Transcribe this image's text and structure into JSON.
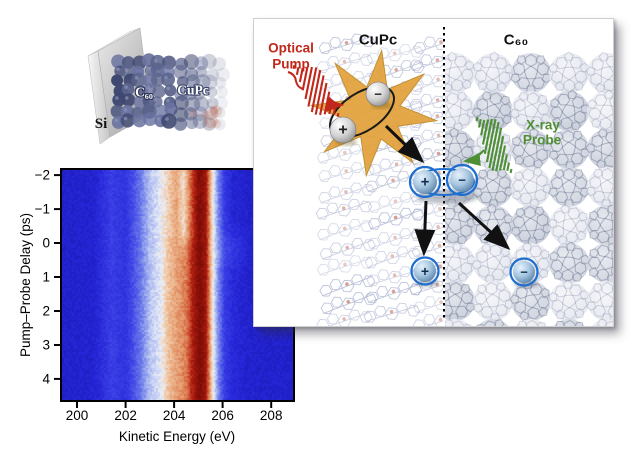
{
  "chart_data": {
    "type": "heatmap",
    "title": "",
    "xlabel": "Kinetic Energy (eV)",
    "ylabel": "Pump–Probe Delay (ps)",
    "x_range_eV": [
      199.38,
      208.9
    ],
    "y_range_ps": [
      -2.15,
      4.62
    ],
    "y_increases_downward": true,
    "x_ticks": [
      200,
      202,
      204,
      206,
      208
    ],
    "x_tick_labels": [
      "200",
      "202",
      "204",
      "206",
      "208"
    ],
    "y_ticks": [
      -2,
      -1,
      0,
      1,
      2,
      3,
      4
    ],
    "y_tick_labels": [
      "−2",
      "−1",
      "0",
      "1",
      "2",
      "3",
      "4"
    ],
    "grid": false,
    "legend": false,
    "colormap_stops": [
      [
        0.0,
        "#1a1ab4"
      ],
      [
        0.1,
        "#2626d8"
      ],
      [
        0.22,
        "#3c42e6"
      ],
      [
        0.34,
        "#6b79ea"
      ],
      [
        0.46,
        "#b7c4f2"
      ],
      [
        0.54,
        "#eceff7"
      ],
      [
        0.62,
        "#f0c6a2"
      ],
      [
        0.7,
        "#e59a6e"
      ],
      [
        0.78,
        "#d4603c"
      ],
      [
        0.88,
        "#b01e10"
      ],
      [
        1.0,
        "#7d0c07"
      ]
    ],
    "description": "Time-resolved photoemission map: vertical emission bands vs kinetic energy; the salmon band near 204–204.6 eV broadens/merges toward the strong 205 eV band after zero pump–probe delay, with a faint transient near 206.4 eV at t≈0.",
    "intensity_profile_before_t0": [
      [
        199.38,
        0.065
      ],
      [
        200.7,
        0.08
      ],
      [
        201.4,
        0.2
      ],
      [
        202.0,
        0.16
      ],
      [
        202.6,
        0.33
      ],
      [
        203.0,
        0.46
      ],
      [
        203.4,
        0.52
      ],
      [
        203.8,
        0.62
      ],
      [
        204.1,
        0.68
      ],
      [
        204.4,
        0.58
      ],
      [
        204.65,
        0.75
      ],
      [
        205.0,
        1.0
      ],
      [
        205.3,
        0.93
      ],
      [
        205.55,
        0.6
      ],
      [
        205.8,
        0.38
      ],
      [
        206.1,
        0.17
      ],
      [
        206.45,
        0.09
      ],
      [
        207.0,
        0.07
      ],
      [
        208.9,
        0.06
      ]
    ],
    "intensity_profile_after_t0": [
      [
        199.38,
        0.065
      ],
      [
        200.7,
        0.08
      ],
      [
        201.4,
        0.2
      ],
      [
        202.0,
        0.16
      ],
      [
        202.6,
        0.33
      ],
      [
        203.0,
        0.46
      ],
      [
        203.4,
        0.52
      ],
      [
        203.8,
        0.64
      ],
      [
        204.2,
        0.7
      ],
      [
        204.5,
        0.74
      ],
      [
        204.75,
        0.88
      ],
      [
        205.05,
        1.0
      ],
      [
        205.3,
        0.93
      ],
      [
        205.55,
        0.6
      ],
      [
        205.8,
        0.38
      ],
      [
        206.1,
        0.18
      ],
      [
        206.45,
        0.11
      ],
      [
        207.0,
        0.075
      ],
      [
        208.9,
        0.06
      ]
    ],
    "t0_transition_width_ps": 0.12,
    "transient_feature": {
      "center_eV": 206.35,
      "center_ps": 0.15,
      "sigma_eV": 0.4,
      "sigma_ps": 0.4,
      "amplitude": 0.07
    },
    "noise_amplitude": 0.035
  },
  "sample": {
    "substrate_label": "Si",
    "c60_layer_label": "C₆₀",
    "cupc_layer_label": "CuPc"
  },
  "panel": {
    "left_region_label": "CuPc",
    "right_region_label": "C₆₀",
    "pump_label_line1": "Optical",
    "pump_label_line2": "Pump",
    "probe_label_line1": "X-ray",
    "probe_label_line2": "Probe",
    "plus": "+",
    "minus": "−",
    "colors": {
      "pump_red": "#c1271a",
      "probe_green": "#4e8f35",
      "star_orange": "#e2a23c",
      "star_edge": "#c08a28",
      "charge_ring_blue": "#1f6fd0",
      "arrow_black": "#111111",
      "molecule_gray_blue": "#9fa9c9",
      "bucky_gray": "#c6ccda"
    }
  }
}
